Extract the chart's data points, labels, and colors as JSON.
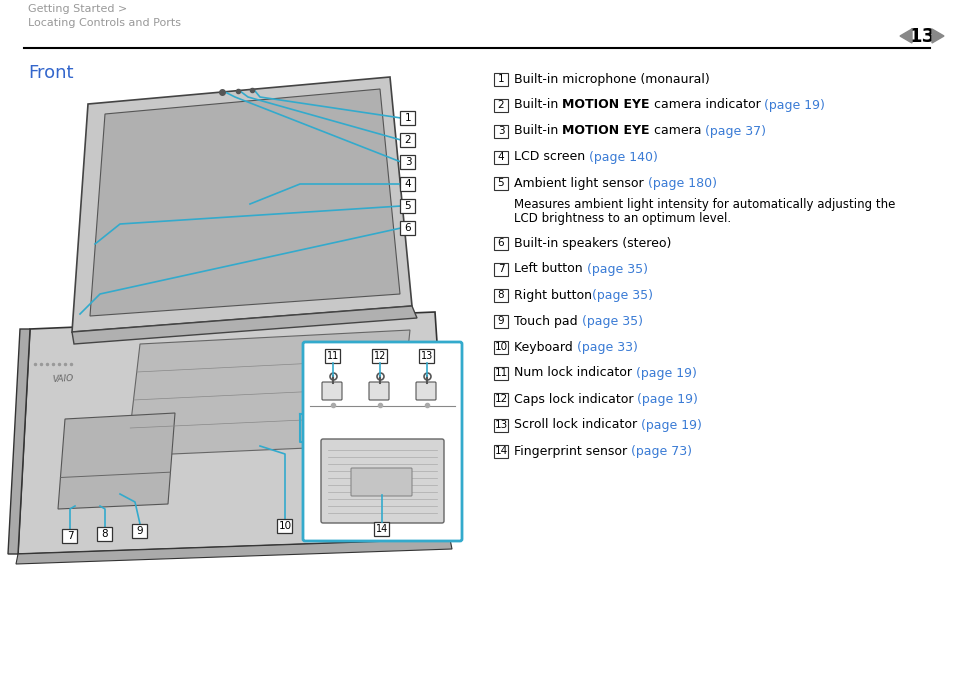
{
  "bg_color": "#ffffff",
  "header_text_line1": "Getting Started >",
  "header_text_line2": "Locating Controls and Ports",
  "page_number": "13",
  "header_color": "#999999",
  "section_title": "Front",
  "section_title_color": "#3366cc",
  "items": [
    {
      "num": "1",
      "text_parts": [
        {
          "text": "Built-in microphone (monaural)",
          "bold": false,
          "color": "#000000"
        }
      ]
    },
    {
      "num": "2",
      "text_parts": [
        {
          "text": "Built-in ",
          "bold": false,
          "color": "#000000"
        },
        {
          "text": "MOTION EYE",
          "bold": true,
          "color": "#000000"
        },
        {
          "text": " camera indicator ",
          "bold": false,
          "color": "#000000"
        },
        {
          "text": "(page 19)",
          "bold": false,
          "color": "#3a7bd5"
        }
      ]
    },
    {
      "num": "3",
      "text_parts": [
        {
          "text": "Built-in ",
          "bold": false,
          "color": "#000000"
        },
        {
          "text": "MOTION EYE",
          "bold": true,
          "color": "#000000"
        },
        {
          "text": " camera ",
          "bold": false,
          "color": "#000000"
        },
        {
          "text": "(page 37)",
          "bold": false,
          "color": "#3a7bd5"
        }
      ]
    },
    {
      "num": "4",
      "text_parts": [
        {
          "text": "LCD screen ",
          "bold": false,
          "color": "#000000"
        },
        {
          "text": "(page 140)",
          "bold": false,
          "color": "#3a7bd5"
        }
      ]
    },
    {
      "num": "5",
      "text_parts": [
        {
          "text": "Ambient light sensor ",
          "bold": false,
          "color": "#000000"
        },
        {
          "text": "(page 180)",
          "bold": false,
          "color": "#3a7bd5"
        }
      ],
      "subtext": "Measures ambient light intensity for automatically adjusting the\nLCD brightness to an optimum level."
    },
    {
      "num": "6",
      "text_parts": [
        {
          "text": "Built-in speakers (stereo)",
          "bold": false,
          "color": "#000000"
        }
      ]
    },
    {
      "num": "7",
      "text_parts": [
        {
          "text": "Left button ",
          "bold": false,
          "color": "#000000"
        },
        {
          "text": "(page 35)",
          "bold": false,
          "color": "#3a7bd5"
        }
      ]
    },
    {
      "num": "8",
      "text_parts": [
        {
          "text": "Right button",
          "bold": false,
          "color": "#000000"
        },
        {
          "text": "(page 35)",
          "bold": false,
          "color": "#3a7bd5"
        }
      ]
    },
    {
      "num": "9",
      "text_parts": [
        {
          "text": "Touch pad ",
          "bold": false,
          "color": "#000000"
        },
        {
          "text": "(page 35)",
          "bold": false,
          "color": "#3a7bd5"
        }
      ]
    },
    {
      "num": "10",
      "text_parts": [
        {
          "text": "Keyboard ",
          "bold": false,
          "color": "#000000"
        },
        {
          "text": "(page 33)",
          "bold": false,
          "color": "#3a7bd5"
        }
      ]
    },
    {
      "num": "11",
      "text_parts": [
        {
          "text": "Num lock indicator ",
          "bold": false,
          "color": "#000000"
        },
        {
          "text": "(page 19)",
          "bold": false,
          "color": "#3a7bd5"
        }
      ]
    },
    {
      "num": "12",
      "text_parts": [
        {
          "text": "Caps lock indicator ",
          "bold": false,
          "color": "#000000"
        },
        {
          "text": "(page 19)",
          "bold": false,
          "color": "#3a7bd5"
        }
      ]
    },
    {
      "num": "13",
      "text_parts": [
        {
          "text": "Scroll lock indicator ",
          "bold": false,
          "color": "#000000"
        },
        {
          "text": "(page 19)",
          "bold": false,
          "color": "#3a7bd5"
        }
      ]
    },
    {
      "num": "14",
      "text_parts": [
        {
          "text": "Fingerprint sensor ",
          "bold": false,
          "color": "#000000"
        },
        {
          "text": "(page 73)",
          "bold": false,
          "color": "#3a7bd5"
        }
      ]
    }
  ],
  "body_fontsize": 9.0,
  "header_fontsize": 8.0,
  "title_fontsize": 13,
  "page_num_fontsize": 14,
  "divider_color": "#000000",
  "line_color": "#33aacc",
  "lw_conn": 1.2
}
